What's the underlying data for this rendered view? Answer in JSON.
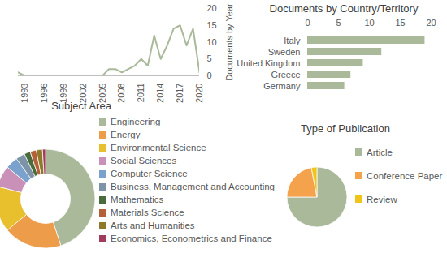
{
  "chart_data": [
    {
      "type": "line",
      "y_label": "Documents by Year",
      "x": [
        1992,
        1993,
        1994,
        1995,
        1996,
        1997,
        1998,
        1999,
        2000,
        2001,
        2002,
        2003,
        2004,
        2005,
        2006,
        2007,
        2008,
        2009,
        2010,
        2011,
        2012,
        2013,
        2014,
        2015,
        2016,
        2017,
        2018,
        2019,
        2020
      ],
      "values": [
        1,
        0,
        0,
        0,
        0,
        0,
        0,
        0,
        0,
        0,
        0,
        0,
        0,
        0,
        2,
        2,
        1,
        2,
        3,
        5,
        3,
        12,
        5,
        9,
        14,
        15,
        9,
        14,
        1
      ],
      "color": "#a9b99a",
      "xlim": [
        1992,
        2020
      ],
      "xticks": [
        1993,
        1996,
        1999,
        2002,
        2005,
        2008,
        2011,
        2014,
        2017,
        2020
      ],
      "ylim": [
        0,
        20
      ],
      "yticks": [
        0,
        5,
        10,
        15,
        20
      ],
      "grid": false
    },
    {
      "type": "bar",
      "title": "Documents by Country/Territory",
      "orientation": "horizontal",
      "categories": [
        "Italy",
        "Sweden",
        "United Kingdom",
        "Greece",
        "Germany"
      ],
      "values": [
        19,
        12,
        9,
        7,
        6
      ],
      "color": "#a9b99a",
      "xlim": [
        0,
        20
      ],
      "xticks": [
        0,
        5,
        10,
        15,
        20
      ],
      "grid": false
    },
    {
      "type": "donut",
      "title": "Subject Area",
      "categories": [
        "Engineering",
        "Energy",
        "Environmental Science",
        "Social Sciences",
        "Computer Science",
        "Business, Management and Accounting",
        "Mathematics",
        "Materials Science",
        "Arts and Humanities",
        "Economics, Econometrics and Finance"
      ],
      "values": [
        45,
        19,
        15,
        7,
        4,
        3,
        2,
        2,
        2,
        1
      ],
      "colors": [
        "#a9b99a",
        "#ed9c4a",
        "#e8c02e",
        "#c990b8",
        "#7ba2cd",
        "#7c93a8",
        "#4a6b3b",
        "#b4613a",
        "#8c7a2a",
        "#9e3e5c"
      ],
      "legend": "right"
    },
    {
      "type": "pie",
      "title": "Type of Publication",
      "categories": [
        "Article",
        "Conference Paper",
        "Review"
      ],
      "values": [
        75,
        22,
        3
      ],
      "colors": [
        "#a9b99a",
        "#f4a24b",
        "#f0c419"
      ],
      "legend": "right"
    }
  ]
}
